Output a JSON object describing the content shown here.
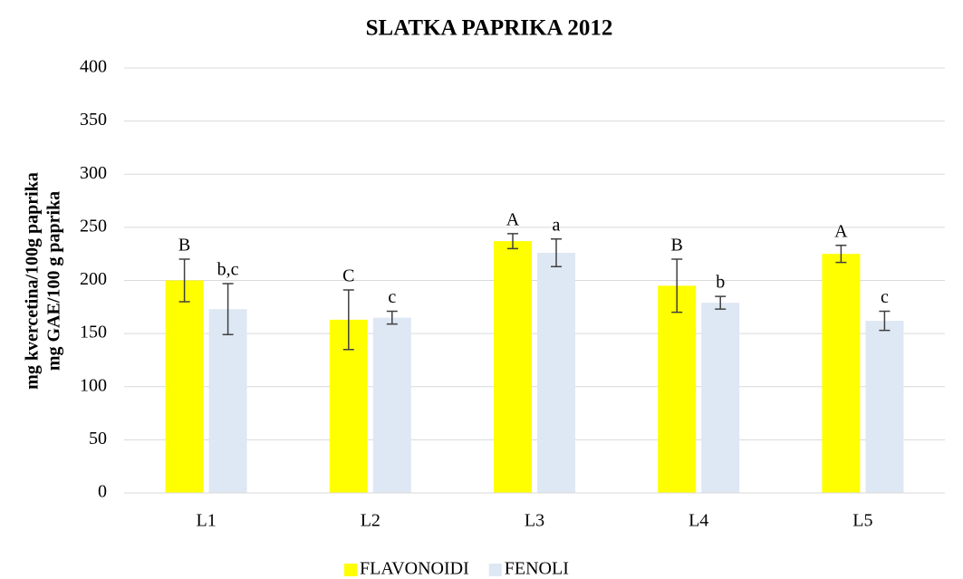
{
  "chart_data": {
    "type": "bar",
    "title": "SLATKA PAPRIKA 2012",
    "y_label": [
      "mg kvercetina/100g paprika",
      "mg GAE/100 g paprika"
    ],
    "categories": [
      "L1",
      "L2",
      "L3",
      "L4",
      "L5"
    ],
    "series": [
      {
        "name": "FLAVONOIDI",
        "color": "#ffff00",
        "values": [
          200,
          163,
          237,
          195,
          225
        ],
        "errors": [
          20,
          28,
          7,
          25,
          8
        ],
        "annotations": [
          "B",
          "C",
          "A",
          "B",
          "A"
        ]
      },
      {
        "name": "FENOLI",
        "color": "#dee8f4",
        "values": [
          173,
          165,
          226,
          179,
          162
        ],
        "errors": [
          24,
          6,
          13,
          6,
          9
        ],
        "annotations": [
          "b,c",
          "c",
          "a",
          "b",
          "c"
        ]
      }
    ],
    "ylim": [
      0,
      400
    ],
    "yticks": [
      0,
      50,
      100,
      150,
      200,
      250,
      300,
      350,
      400
    ],
    "grid": true,
    "legend": "bottom"
  }
}
